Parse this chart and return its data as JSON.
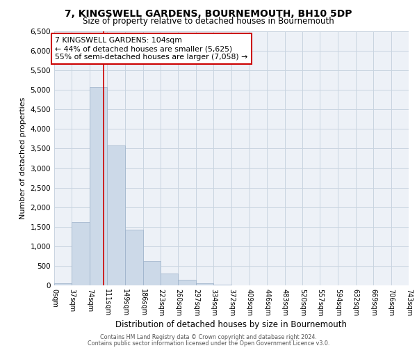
{
  "title": "7, KINGSWELL GARDENS, BOURNEMOUTH, BH10 5DP",
  "subtitle": "Size of property relative to detached houses in Bournemouth",
  "xlabel": "Distribution of detached houses by size in Bournemouth",
  "ylabel": "Number of detached properties",
  "bar_color": "#ccd9e8",
  "bar_edge_color": "#9ab0c8",
  "bin_edges": [
    0,
    37,
    74,
    111,
    149,
    186,
    223,
    260,
    297,
    334,
    372,
    409,
    446,
    483,
    520,
    557,
    594,
    632,
    669,
    706,
    743
  ],
  "bin_heights": [
    55,
    1625,
    5080,
    3580,
    1430,
    615,
    305,
    150,
    60,
    15,
    5,
    2,
    2,
    0,
    0,
    0,
    0,
    0,
    0,
    0
  ],
  "property_size": 104,
  "vline_color": "#cc0000",
  "annotation_text": "7 KINGSWELL GARDENS: 104sqm\n← 44% of detached houses are smaller (5,625)\n55% of semi-detached houses are larger (7,058) →",
  "annotation_box_color": "#ffffff",
  "annotation_box_edge_color": "#cc0000",
  "ylim": [
    0,
    6500
  ],
  "yticks": [
    0,
    500,
    1000,
    1500,
    2000,
    2500,
    3000,
    3500,
    4000,
    4500,
    5000,
    5500,
    6000,
    6500
  ],
  "grid_color": "#c8d4e0",
  "footer_line1": "Contains HM Land Registry data © Crown copyright and database right 2024.",
  "footer_line2": "Contains public sector information licensed under the Open Government Licence v3.0.",
  "background_color": "#ffffff",
  "plot_bg_color": "#edf1f7"
}
